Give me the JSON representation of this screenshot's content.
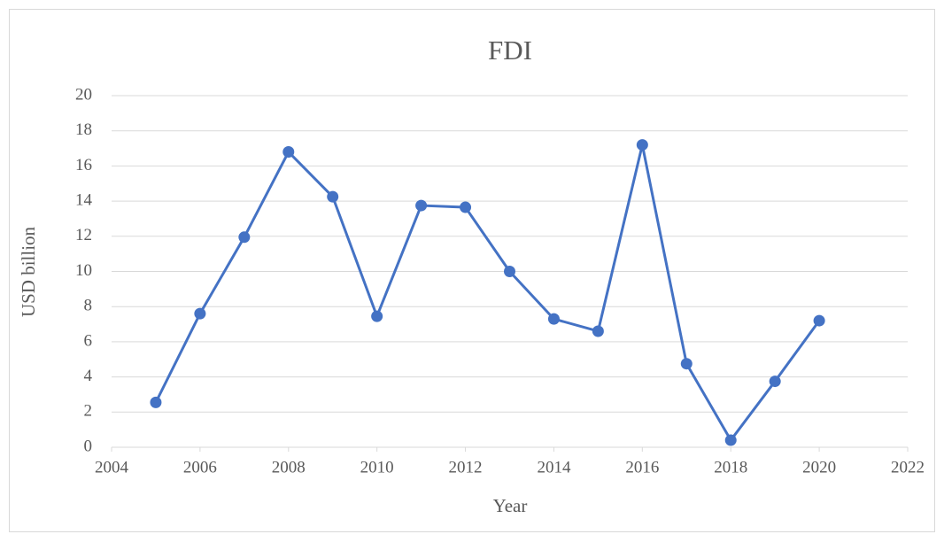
{
  "chart_data": {
    "type": "line",
    "title": "FDI",
    "x_label": "Year",
    "y_label": "USD billion",
    "x": [
      2005,
      2006,
      2007,
      2008,
      2009,
      2010,
      2011,
      2012,
      2013,
      2014,
      2015,
      2016,
      2017,
      2018,
      2019,
      2020
    ],
    "values": [
      2.55,
      7.6,
      11.95,
      16.8,
      14.25,
      7.45,
      13.75,
      13.65,
      10.0,
      7.3,
      6.6,
      17.2,
      4.75,
      0.4,
      3.75,
      7.2
    ],
    "color": "#4472c4",
    "xlim": [
      2004,
      2022
    ],
    "xticks": [
      2004,
      2006,
      2008,
      2010,
      2012,
      2014,
      2016,
      2018,
      2020,
      2022
    ],
    "ylim": [
      0,
      20
    ],
    "yticks": [
      0,
      2,
      4,
      6,
      8,
      10,
      12,
      14,
      16,
      18,
      20
    ],
    "grid": true,
    "markers": true
  }
}
